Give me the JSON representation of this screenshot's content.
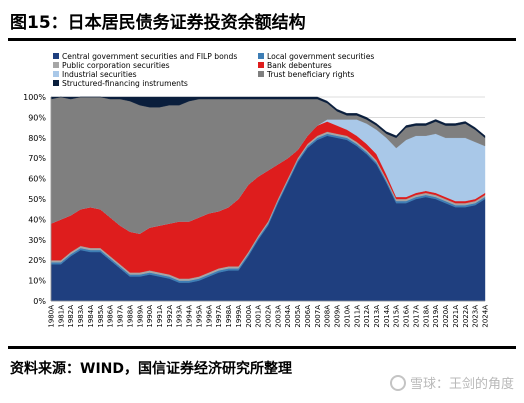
{
  "title": "图15：日本居民债务证券投资余额结构",
  "source": "资料来源：WIND，国信证券经济研究所整理",
  "watermark": "雪球：王剑的角度",
  "chart_data": {
    "type": "area",
    "stacked": true,
    "percent": true,
    "ylim": [
      0,
      100
    ],
    "y_ticks": [
      "0%",
      "10%",
      "20%",
      "30%",
      "40%",
      "50%",
      "60%",
      "70%",
      "80%",
      "90%",
      "100%"
    ],
    "grid": true,
    "legend_position": "top",
    "categories": [
      "1980A",
      "1981A",
      "1982A",
      "1983A",
      "1984A",
      "1985A",
      "1986A",
      "1987A",
      "1988A",
      "1989A",
      "1990A",
      "1991A",
      "1992A",
      "1993A",
      "1994A",
      "1995A",
      "1996A",
      "1997A",
      "1998A",
      "1999A",
      "2000A",
      "2001A",
      "2002A",
      "2003A",
      "2004A",
      "2005A",
      "2006A",
      "2007A",
      "2008A",
      "2009A",
      "2010A",
      "2011A",
      "2012A",
      "2013A",
      "2014A",
      "2015A",
      "2016A",
      "2017A",
      "2018A",
      "2019A",
      "2020A",
      "2021A",
      "2022A",
      "2023A",
      "2024A"
    ],
    "series": [
      {
        "name": "Central government securities and FILP bonds",
        "color": "#1f3f7f",
        "values": [
          18,
          18,
          22,
          25,
          24,
          24,
          20,
          16,
          12,
          12,
          13,
          12,
          11,
          9,
          9,
          10,
          12,
          14,
          15,
          15,
          22,
          30,
          37,
          48,
          58,
          68,
          75,
          79,
          81,
          80,
          79,
          76,
          72,
          67,
          58,
          48,
          48,
          50,
          51,
          50,
          48,
          46,
          46,
          47,
          50
        ]
      },
      {
        "name": "Local government securities",
        "color": "#3e7eb5",
        "values": [
          1,
          1,
          1,
          1,
          1,
          1,
          1,
          1,
          1,
          1,
          1,
          1,
          1,
          1,
          1,
          1,
          1,
          1,
          1,
          1,
          1,
          1,
          1,
          1,
          1,
          1,
          1,
          1,
          1,
          1,
          1,
          1,
          1,
          1,
          1,
          1,
          1,
          1,
          1,
          1,
          1,
          1,
          1,
          1,
          1
        ]
      },
      {
        "name": "Public corporation securities",
        "color": "#a6a6a6",
        "values": [
          1,
          1,
          1,
          1,
          1,
          1,
          1,
          1,
          1,
          1,
          1,
          1,
          1,
          1,
          1,
          1,
          1,
          1,
          1,
          1,
          1,
          1,
          1,
          1,
          1,
          1,
          1,
          1,
          1,
          1,
          1,
          1,
          1,
          1,
          1,
          1,
          1,
          1,
          1,
          1,
          1,
          1,
          1,
          1,
          1
        ]
      },
      {
        "name": "Bank debentures",
        "color": "#de1d1d",
        "values": [
          18,
          20,
          18,
          18,
          20,
          19,
          19,
          19,
          20,
          19,
          21,
          23,
          25,
          28,
          28,
          29,
          29,
          28,
          29,
          33,
          33,
          29,
          25,
          17,
          10,
          4,
          4,
          5,
          5,
          4,
          3,
          3,
          3,
          3,
          2,
          1,
          1,
          1,
          1,
          1,
          1,
          1,
          1,
          1,
          1
        ]
      },
      {
        "name": "Industrial securities",
        "color": "#a9c8e8",
        "values": [
          0,
          0,
          0,
          0,
          0,
          0,
          0,
          0,
          0,
          0,
          0,
          0,
          0,
          0,
          0,
          0,
          0,
          0,
          0,
          0,
          0,
          0,
          0,
          0,
          0,
          0,
          0,
          0,
          1,
          3,
          5,
          8,
          10,
          12,
          18,
          24,
          28,
          28,
          27,
          29,
          29,
          31,
          31,
          28,
          23
        ]
      },
      {
        "name": "Trust beneficiary rights",
        "color": "#7f7f7f",
        "values": [
          61,
          60,
          57,
          55,
          54,
          55,
          58,
          62,
          64,
          63,
          59,
          58,
          58,
          57,
          59,
          58,
          56,
          55,
          53,
          49,
          42,
          38,
          35,
          32,
          29,
          25,
          18,
          13,
          8,
          4,
          2,
          2,
          2,
          2,
          2,
          5,
          6,
          5,
          5,
          6,
          6,
          6,
          7,
          6,
          4
        ]
      },
      {
        "name": "Structured-financing instruments",
        "color": "#0a1e3c",
        "values": [
          1,
          0,
          1,
          0,
          0,
          0,
          1,
          1,
          2,
          4,
          5,
          5,
          4,
          4,
          2,
          1,
          1,
          1,
          1,
          1,
          1,
          1,
          1,
          1,
          1,
          1,
          1,
          1,
          1,
          1,
          1,
          1,
          1,
          1,
          1,
          1,
          1,
          1,
          1,
          1,
          1,
          1,
          1,
          1,
          1
        ]
      }
    ],
    "legend": [
      {
        "label": "Central government securities and FILP bonds",
        "color": "#1f3f7f"
      },
      {
        "label": "Local government securities",
        "color": "#3e7eb5"
      },
      {
        "label": "Public corporation securities",
        "color": "#a6a6a6"
      },
      {
        "label": "Bank debentures",
        "color": "#de1d1d"
      },
      {
        "label": "Industrial securities",
        "color": "#a9c8e8"
      },
      {
        "label": "Trust beneficiary rights",
        "color": "#7f7f7f"
      },
      {
        "label": "Structured-financing instruments",
        "color": "#0a1e3c"
      }
    ]
  }
}
